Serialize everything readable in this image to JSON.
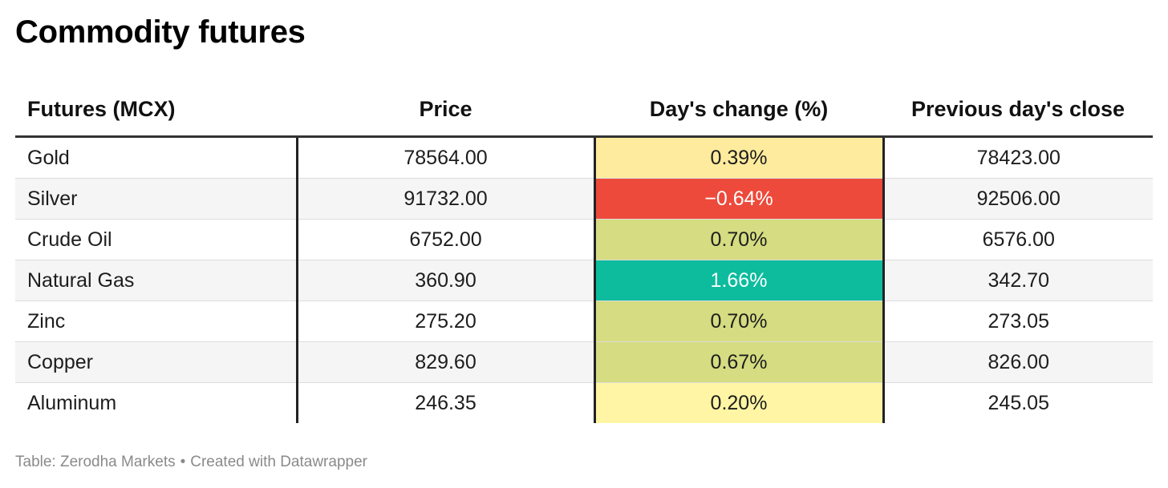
{
  "title": "Commodity futures",
  "columns": [
    "Futures (MCX)",
    "Price",
    "Day's change (%)",
    "Previous day's close"
  ],
  "chart_data": {
    "type": "table",
    "title": "Commodity futures",
    "columns": [
      "Futures (MCX)",
      "Price",
      "Day's change (%)",
      "Previous day's close"
    ],
    "rows": [
      {
        "name": "Gold",
        "price": "78564.00",
        "change": "0.39%",
        "change_value": 0.39,
        "prev_close": "78423.00",
        "change_color": "#feeb9d",
        "change_text_color": "#1d1d1d"
      },
      {
        "name": "Silver",
        "price": "91732.00",
        "change": "−0.64%",
        "change_value": -0.64,
        "prev_close": "92506.00",
        "change_color": "#ed4a3b",
        "change_text_color": "#ffffff"
      },
      {
        "name": "Crude Oil",
        "price": "6752.00",
        "change": "0.70%",
        "change_value": 0.7,
        "prev_close": "6576.00",
        "change_color": "#d5dc81",
        "change_text_color": "#1d1d1d"
      },
      {
        "name": "Natural Gas",
        "price": "360.90",
        "change": "1.66%",
        "change_value": 1.66,
        "prev_close": "342.70",
        "change_color": "#0cbc9d",
        "change_text_color": "#ffffff"
      },
      {
        "name": "Zinc",
        "price": "275.20",
        "change": "0.70%",
        "change_value": 0.7,
        "prev_close": "273.05",
        "change_color": "#d5dc81",
        "change_text_color": "#1d1d1d"
      },
      {
        "name": "Copper",
        "price": "829.60",
        "change": "0.67%",
        "change_value": 0.67,
        "prev_close": "826.00",
        "change_color": "#d5dc81",
        "change_text_color": "#1d1d1d"
      },
      {
        "name": "Aluminum",
        "price": "246.35",
        "change": "0.20%",
        "change_value": 0.2,
        "prev_close": "245.05",
        "change_color": "#fff5a4",
        "change_text_color": "#1d1d1d"
      }
    ]
  },
  "footer": {
    "source": "Table: Zerodha Markets",
    "separator": "•",
    "credit": "Created with Datawrapper"
  }
}
